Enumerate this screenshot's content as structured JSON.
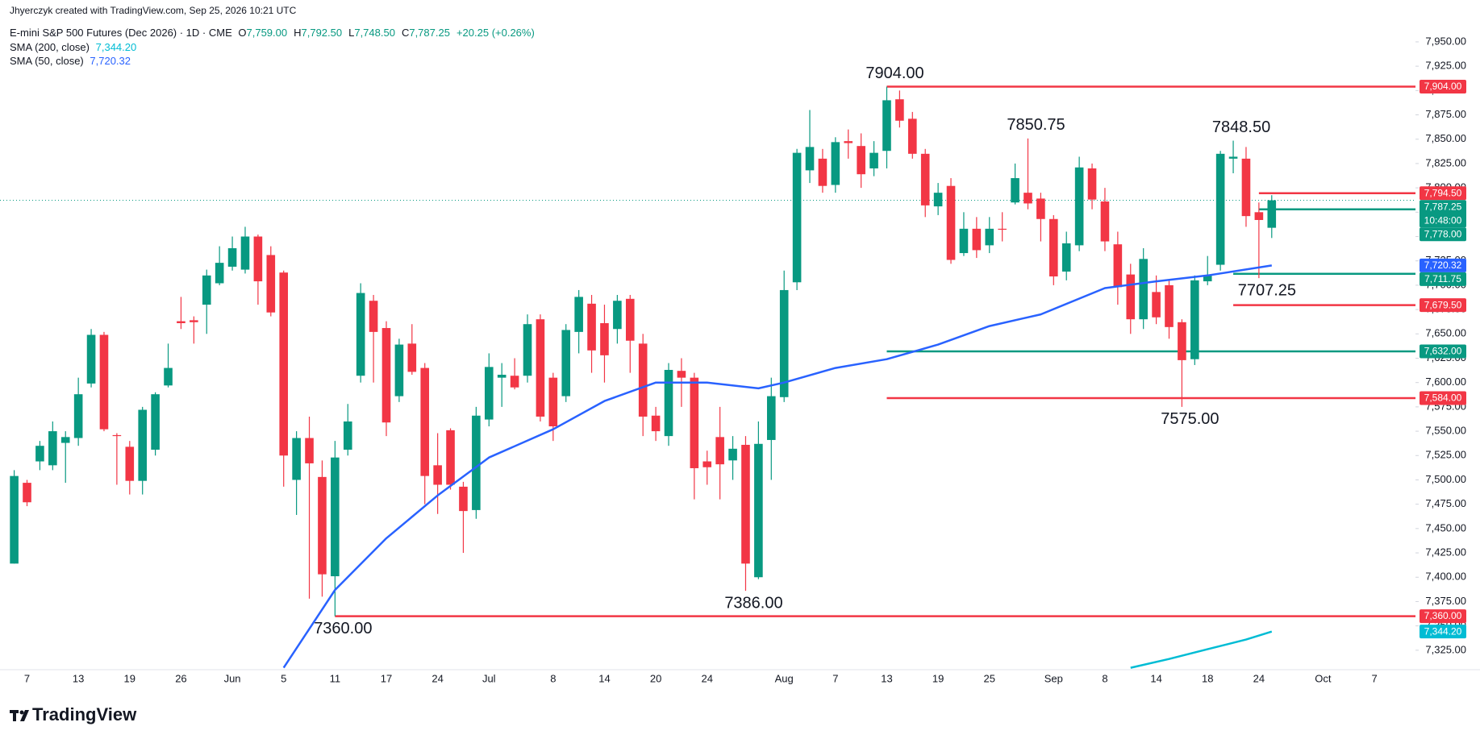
{
  "header": {
    "credit": "Jhyerczyk created with TradingView.com, Sep 25, 2026 10:21 UTC",
    "symbol": "E-mini S&P 500 Futures (Dec 2026) · 1D · CME",
    "ohlc": [
      {
        "key": "O",
        "value": "7,759.00"
      },
      {
        "key": "H",
        "value": "7,792.50"
      },
      {
        "key": "L",
        "value": "7,748.50"
      },
      {
        "key": "C",
        "value": "7,787.25"
      }
    ],
    "change": "+20.25 (+0.26%)"
  },
  "footer": {
    "brand": "TradingView"
  },
  "chart_data": {
    "type": "candlestick",
    "categories": [
      null,
      "7",
      null,
      null,
      null,
      "13",
      null,
      null,
      null,
      "19",
      null,
      null,
      null,
      "26",
      null,
      null,
      null,
      "Jun",
      null,
      null,
      null,
      "5",
      null,
      null,
      null,
      "11",
      null,
      null,
      null,
      "17",
      null,
      null,
      null,
      "24",
      null,
      null,
      null,
      "Jul",
      null,
      null,
      null,
      null,
      "8",
      null,
      null,
      null,
      "14",
      null,
      null,
      null,
      "20",
      null,
      null,
      null,
      "24",
      null,
      null,
      null,
      null,
      null,
      "Aug",
      null,
      null,
      null,
      "7",
      null,
      null,
      null,
      "13",
      null,
      null,
      null,
      "19",
      null,
      null,
      null,
      "25",
      null,
      null,
      null,
      null,
      "Sep",
      null,
      null,
      null,
      "8",
      null,
      null,
      null,
      "14",
      null,
      null,
      null,
      "18",
      null,
      null,
      null,
      "24",
      null,
      null,
      null,
      null,
      "Oct",
      null,
      null,
      null,
      "7",
      null,
      null
    ],
    "open": [
      7414,
      7497,
      7519,
      7515,
      7538,
      7543,
      7599,
      7649,
      7546,
      7534,
      7499,
      7531,
      7597,
      7663,
      7664,
      7680,
      7702,
      7719,
      7716,
      7750,
      7731,
      7713,
      7500,
      7543,
      7503,
      7401,
      7531,
      7607,
      7684,
      7656,
      7586,
      7640,
      7615,
      7515,
      7551,
      7493,
      7469,
      7562,
      7605,
      7607,
      7607,
      7665,
      7605,
      7586,
      7652,
      7681,
      7661,
      7655,
      7686,
      7640,
      7566,
      7545,
      7612,
      7605,
      7519,
      7544,
      7520,
      7536,
      7400,
      7541,
      7585,
      7703,
      7818,
      7830,
      7803,
      7848,
      7843,
      7820,
      7838,
      7891,
      7871,
      7835,
      7781,
      7802,
      7733,
      7758,
      7741,
      7758,
      7785,
      7795,
      7789,
      7768,
      7714,
      7741,
      7820,
      7786,
      7742,
      7711,
      7665,
      7693,
      7700,
      7662,
      7624,
      7704,
      7721,
      7830,
      7830,
      7775,
      7759,
      null,
      null,
      null,
      null,
      null,
      null,
      null,
      null,
      null,
      null
    ],
    "high": [
      7510,
      7500,
      7540,
      7560,
      7550,
      7605,
      7655,
      7652,
      7548,
      7540,
      7575,
      7590,
      7640,
      7688,
      7668,
      7716,
      7740,
      7750,
      7760,
      7752,
      7740,
      7715,
      7550,
      7565,
      7520,
      7540,
      7578,
      7702,
      7690,
      7663,
      7645,
      7660,
      7620,
      7548,
      7553,
      7498,
      7575,
      7630,
      7620,
      7625,
      7670,
      7670,
      7610,
      7660,
      7695,
      7690,
      7680,
      7690,
      7690,
      7650,
      7575,
      7620,
      7625,
      7610,
      7530,
      7575,
      7545,
      7545,
      7560,
      7605,
      7715,
      7840,
      7880,
      7840,
      7852,
      7860,
      7856,
      7848,
      7904,
      7900,
      7878,
      7840,
      7805,
      7810,
      7775,
      7770,
      7770,
      7775,
      7825,
      7850.75,
      7795,
      7772,
      7755,
      7832,
      7825,
      7800,
      7755,
      7722,
      7738,
      7710,
      7705,
      7665,
      7710,
      7730,
      7838,
      7848.5,
      7842,
      7785,
      7792.5,
      null,
      null,
      null,
      null,
      null,
      null,
      null,
      null,
      null,
      null
    ],
    "low": [
      7414,
      7473,
      7510,
      7510,
      7497,
      7535,
      7595,
      7550,
      7495,
      7485,
      7485,
      7525,
      7595,
      7655,
      7640,
      7650,
      7700,
      7715,
      7712,
      7680,
      7668,
      7493,
      7464,
      7378,
      7380,
      7360,
      7525,
      7600,
      7600,
      7545,
      7580,
      7608,
      7475,
      7465,
      7490,
      7425,
      7460,
      7555,
      7575,
      7593,
      7600,
      7560,
      7540,
      7580,
      7630,
      7610,
      7600,
      7640,
      7610,
      7545,
      7540,
      7535,
      7575,
      7480,
      7495,
      7480,
      7500,
      7386,
      7398,
      7500,
      7580,
      7695,
      7805,
      7795,
      7795,
      7830,
      7800,
      7812,
      7820,
      7862,
      7830,
      7770,
      7772,
      7722,
      7730,
      7728,
      7733,
      7745,
      7783,
      7778,
      7745,
      7700,
      7705,
      7735,
      7778,
      7735,
      7680,
      7650,
      7655,
      7660,
      7645,
      7575,
      7618,
      7700,
      7715,
      7815,
      7760,
      7707.25,
      7748.5,
      null,
      null,
      null,
      null,
      null,
      null,
      null,
      null,
      null,
      null
    ],
    "close": [
      7504,
      7477,
      7535,
      7550,
      7544,
      7588,
      7649,
      7552,
      7545,
      7499,
      7572,
      7588,
      7615,
      7661,
      7662,
      7710,
      7723,
      7738,
      7750,
      7704,
      7672,
      7525,
      7543,
      7517,
      7403,
      7523,
      7560,
      7692,
      7652,
      7559,
      7639,
      7611,
      7504,
      7495,
      7495,
      7468,
      7566,
      7616,
      7608,
      7595,
      7660,
      7565,
      7555,
      7654,
      7688,
      7633,
      7628,
      7684,
      7643,
      7565,
      7550,
      7613,
      7605,
      7512,
      7513,
      7516,
      7532,
      7414,
      7537,
      7586,
      7695,
      7836,
      7842,
      7802,
      7847,
      7846,
      7814,
      7836,
      7890,
      7869,
      7835,
      7782,
      7795,
      7726,
      7758,
      7736,
      7758,
      7757,
      7810,
      7784,
      7768,
      7709,
      7743,
      7821,
      7788,
      7745,
      7698,
      7665,
      7727,
      7667,
      7657,
      7623,
      7705,
      7710,
      7835,
      7832,
      7771,
      7767,
      7787.25,
      null,
      null,
      null,
      null,
      null,
      null,
      null,
      null,
      null,
      null
    ],
    "up_color": "#089981",
    "down_color": "#f23645",
    "ylim": [
      7305,
      7993
    ],
    "yticks": [
      {
        "value": 7325,
        "label": "7,325.00"
      },
      {
        "value": 7350,
        "label": "7,350.00"
      },
      {
        "value": 7375,
        "label": "7,375.00"
      },
      {
        "value": 7400,
        "label": "7,400.00"
      },
      {
        "value": 7425,
        "label": "7,425.00"
      },
      {
        "value": 7450,
        "label": "7,450.00"
      },
      {
        "value": 7475,
        "label": "7,475.00"
      },
      {
        "value": 7500,
        "label": "7,500.00"
      },
      {
        "value": 7525,
        "label": "7,525.00"
      },
      {
        "value": 7550,
        "label": "7,550.00"
      },
      {
        "value": 7575,
        "label": "7,575.00"
      },
      {
        "value": 7600,
        "label": "7,600.00"
      },
      {
        "value": 7625,
        "label": "7,625.00"
      },
      {
        "value": 7650,
        "label": "7,650.00"
      },
      {
        "value": 7675,
        "label": "7,675.00"
      },
      {
        "value": 7700,
        "label": "7,700.00"
      },
      {
        "value": 7725,
        "label": "7,725.00"
      },
      {
        "value": 7750,
        "label": "7,750.00"
      },
      {
        "value": 7775,
        "label": "7,775.00"
      },
      {
        "value": 7800,
        "label": "7,800.00"
      },
      {
        "value": 7825,
        "label": "7,825.00"
      },
      {
        "value": 7850,
        "label": "7,850.00"
      },
      {
        "value": 7875,
        "label": "7,875.00"
      },
      {
        "value": 7900,
        "label": "7,900.00"
      },
      {
        "value": 7925,
        "label": "7,925.00"
      },
      {
        "value": 7950,
        "label": "7,950.00"
      }
    ],
    "series": [
      {
        "name": "SMA (200, close)",
        "color": "#00bcd4",
        "value_label": "7,344.20",
        "x": [
          87,
          90,
          93,
          96,
          98
        ],
        "values": [
          7307,
          7316,
          7326,
          7336,
          7344.2
        ]
      },
      {
        "name": "SMA (50, close)",
        "color": "#2962ff",
        "value_label": "7,720.32",
        "x": [
          21,
          25,
          29,
          33,
          37,
          42,
          46,
          50,
          54,
          58,
          60,
          64,
          68,
          72,
          76,
          80,
          85,
          89,
          93,
          98
        ],
        "values": [
          7307,
          7387,
          7440,
          7484,
          7523,
          7552,
          7581,
          7600,
          7600,
          7594,
          7600,
          7615,
          7624,
          7639,
          7658,
          7670,
          7697,
          7704,
          7710,
          7720.32
        ]
      }
    ],
    "levels": [
      {
        "value": 7904,
        "label": "7,904.00",
        "color": "#f23645",
        "from": 68
      },
      {
        "value": 7794.5,
        "label": "7,794.50",
        "color": "#f23645",
        "from": 97
      },
      {
        "value": 7778,
        "label": "7,778.00",
        "color": "#089981",
        "from": 97
      },
      {
        "value": 7711.75,
        "label": "7,711.75",
        "color": "#089981",
        "from": 95
      },
      {
        "value": 7679.5,
        "label": "7,679.50",
        "color": "#f23645",
        "from": 95
      },
      {
        "value": 7632,
        "label": "7,632.00",
        "color": "#089981",
        "from": 68
      },
      {
        "value": 7584,
        "label": "7,584.00",
        "color": "#f23645",
        "from": 68
      },
      {
        "value": 7360,
        "label": "7,360.00",
        "color": "#f23645",
        "from": 25
      }
    ],
    "annotations": [
      {
        "text": "7904.00",
        "x": 68,
        "side": "high"
      },
      {
        "text": "7850.75",
        "x": 79,
        "side": "high"
      },
      {
        "text": "7848.50",
        "x": 95,
        "side": "high"
      },
      {
        "text": "7707.25",
        "x": 97,
        "side": "low"
      },
      {
        "text": "7575.00",
        "x": 91,
        "side": "low"
      },
      {
        "text": "7386.00",
        "x": 57,
        "side": "low"
      },
      {
        "text": "7360.00",
        "x": 25,
        "side": "low"
      }
    ],
    "last_price_label": "7,787.25",
    "countdown": "10:48:00"
  }
}
